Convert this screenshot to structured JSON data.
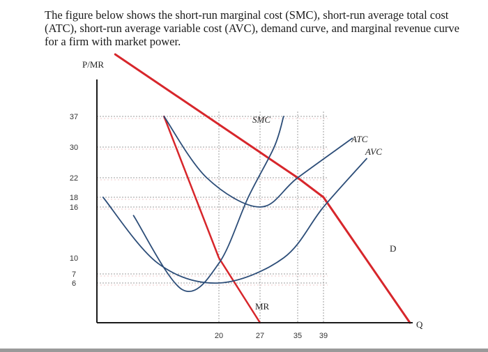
{
  "intro": {
    "line1": "The figure below shows the short-run marginal cost (SMC), short-run average total cost",
    "line2": "(ATC), short-run average variable cost (AVC), demand curve, and marginal revenue curve",
    "line3": "for a firm with market power."
  },
  "colors": {
    "demand": "#d7262b",
    "mr": "#d7262b",
    "cost_curves": "#2c4d78",
    "axes": "#1a1a1a",
    "guides": "#9c9c9c",
    "guides_red": "#e08a8a"
  },
  "chart_data": {
    "type": "line",
    "ylabel": "P/MR",
    "xlabel": "Q",
    "y_ticks": [
      37,
      30,
      22,
      18,
      16,
      10,
      7,
      6
    ],
    "x_ticks": [
      20,
      27,
      35,
      39
    ],
    "series": [
      {
        "name": "D",
        "points": [
          [
            3,
            52
          ],
          [
            35,
            22
          ],
          [
            39,
            18
          ],
          [
            57,
            0
          ]
        ]
      },
      {
        "name": "MR",
        "points": [
          [
            11,
            37
          ],
          [
            20,
            10
          ],
          [
            27,
            0
          ]
        ]
      },
      {
        "name": "SMC",
        "points": [
          [
            6,
            15
          ],
          [
            14,
            5
          ],
          [
            20,
            9
          ],
          [
            25,
            18
          ],
          [
            30,
            30
          ],
          [
            32,
            37
          ]
        ]
      },
      {
        "name": "ATC",
        "points": [
          [
            11,
            37
          ],
          [
            18,
            22
          ],
          [
            27,
            16
          ],
          [
            35,
            22
          ],
          [
            45,
            32
          ]
        ]
      },
      {
        "name": "AVC",
        "points": [
          [
            1,
            18
          ],
          [
            10,
            9
          ],
          [
            20,
            6
          ],
          [
            32,
            10
          ],
          [
            39,
            16
          ],
          [
            48,
            27
          ]
        ]
      }
    ],
    "guides": {
      "horizontal": [
        37,
        30,
        22,
        18,
        16,
        7,
        6
      ],
      "vertical": [
        20,
        27,
        35,
        39
      ]
    }
  }
}
